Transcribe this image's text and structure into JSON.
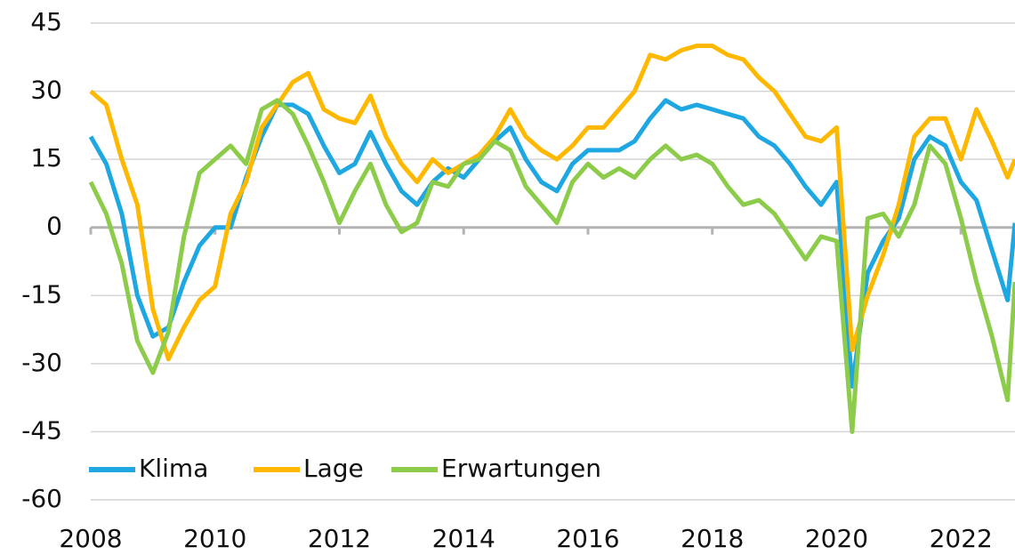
{
  "chart_data": {
    "type": "line",
    "x": [
      2008,
      2008.25,
      2008.5,
      2008.75,
      2009,
      2009.25,
      2009.5,
      2009.75,
      2010,
      2010.25,
      2010.5,
      2010.75,
      2011,
      2011.25,
      2011.5,
      2011.75,
      2012,
      2012.25,
      2012.5,
      2012.75,
      2013,
      2013.25,
      2013.5,
      2013.75,
      2014,
      2014.25,
      2014.5,
      2014.75,
      2015,
      2015.25,
      2015.5,
      2015.75,
      2016,
      2016.25,
      2016.5,
      2016.75,
      2017,
      2017.25,
      2017.5,
      2017.75,
      2018,
      2018.25,
      2018.5,
      2018.75,
      2019,
      2019.25,
      2019.5,
      2019.75,
      2020,
      2020.25,
      2020.5,
      2020.75,
      2021,
      2021.25,
      2021.5,
      2021.75,
      2022,
      2022.25,
      2022.5,
      2022.75,
      2022.87
    ],
    "series": [
      {
        "name": "Klima",
        "color": "#1ea7e1",
        "values": [
          20,
          14,
          3,
          -15,
          -24,
          -22,
          -12,
          -4,
          0,
          0,
          11,
          20,
          27,
          27,
          25,
          18,
          12,
          14,
          21,
          14,
          8,
          5,
          10,
          13,
          11,
          15,
          19,
          22,
          15,
          10,
          8,
          14,
          17,
          17,
          17,
          19,
          24,
          28,
          26,
          27,
          26,
          25,
          24,
          20,
          18,
          14,
          9,
          5,
          10,
          -35,
          -10,
          -3,
          2,
          15,
          20,
          18,
          10,
          6,
          -5,
          -16,
          1
        ]
      },
      {
        "name": "Lage",
        "color": "#ffb800",
        "values": [
          30,
          27,
          15,
          5,
          -18,
          -29,
          -22,
          -16,
          -13,
          3,
          10,
          22,
          27,
          32,
          34,
          26,
          24,
          23,
          29,
          20,
          14,
          10,
          15,
          12,
          14,
          16,
          20,
          26,
          20,
          17,
          15,
          18,
          22,
          22,
          26,
          30,
          38,
          37,
          39,
          40,
          40,
          38,
          37,
          33,
          30,
          25,
          20,
          19,
          22,
          -27,
          -15,
          -6,
          5,
          20,
          24,
          24,
          15,
          26,
          19,
          11,
          15
        ]
      },
      {
        "name": "Erwartungen",
        "color": "#8ccc4a",
        "values": [
          10,
          3,
          -8,
          -25,
          -32,
          -23,
          -2,
          12,
          15,
          18,
          14,
          26,
          28,
          25,
          18,
          10,
          1,
          8,
          14,
          5,
          -1,
          1,
          10,
          9,
          14,
          15,
          19,
          17,
          9,
          5,
          1,
          10,
          14,
          11,
          13,
          11,
          15,
          18,
          15,
          16,
          14,
          9,
          5,
          6,
          3,
          -2,
          -7,
          -2,
          -3,
          -45,
          2,
          3,
          -2,
          5,
          18,
          14,
          2,
          -12,
          -24,
          -38,
          -12
        ]
      }
    ],
    "xlim": [
      2008,
      2022.87
    ],
    "xticks": [
      2008,
      2010,
      2012,
      2014,
      2016,
      2018,
      2020,
      2022
    ],
    "ylim": [
      -60,
      45
    ],
    "yticks": [
      -60,
      -45,
      -30,
      -15,
      0,
      15,
      30,
      45
    ],
    "grid": true,
    "legend": "lower left"
  }
}
